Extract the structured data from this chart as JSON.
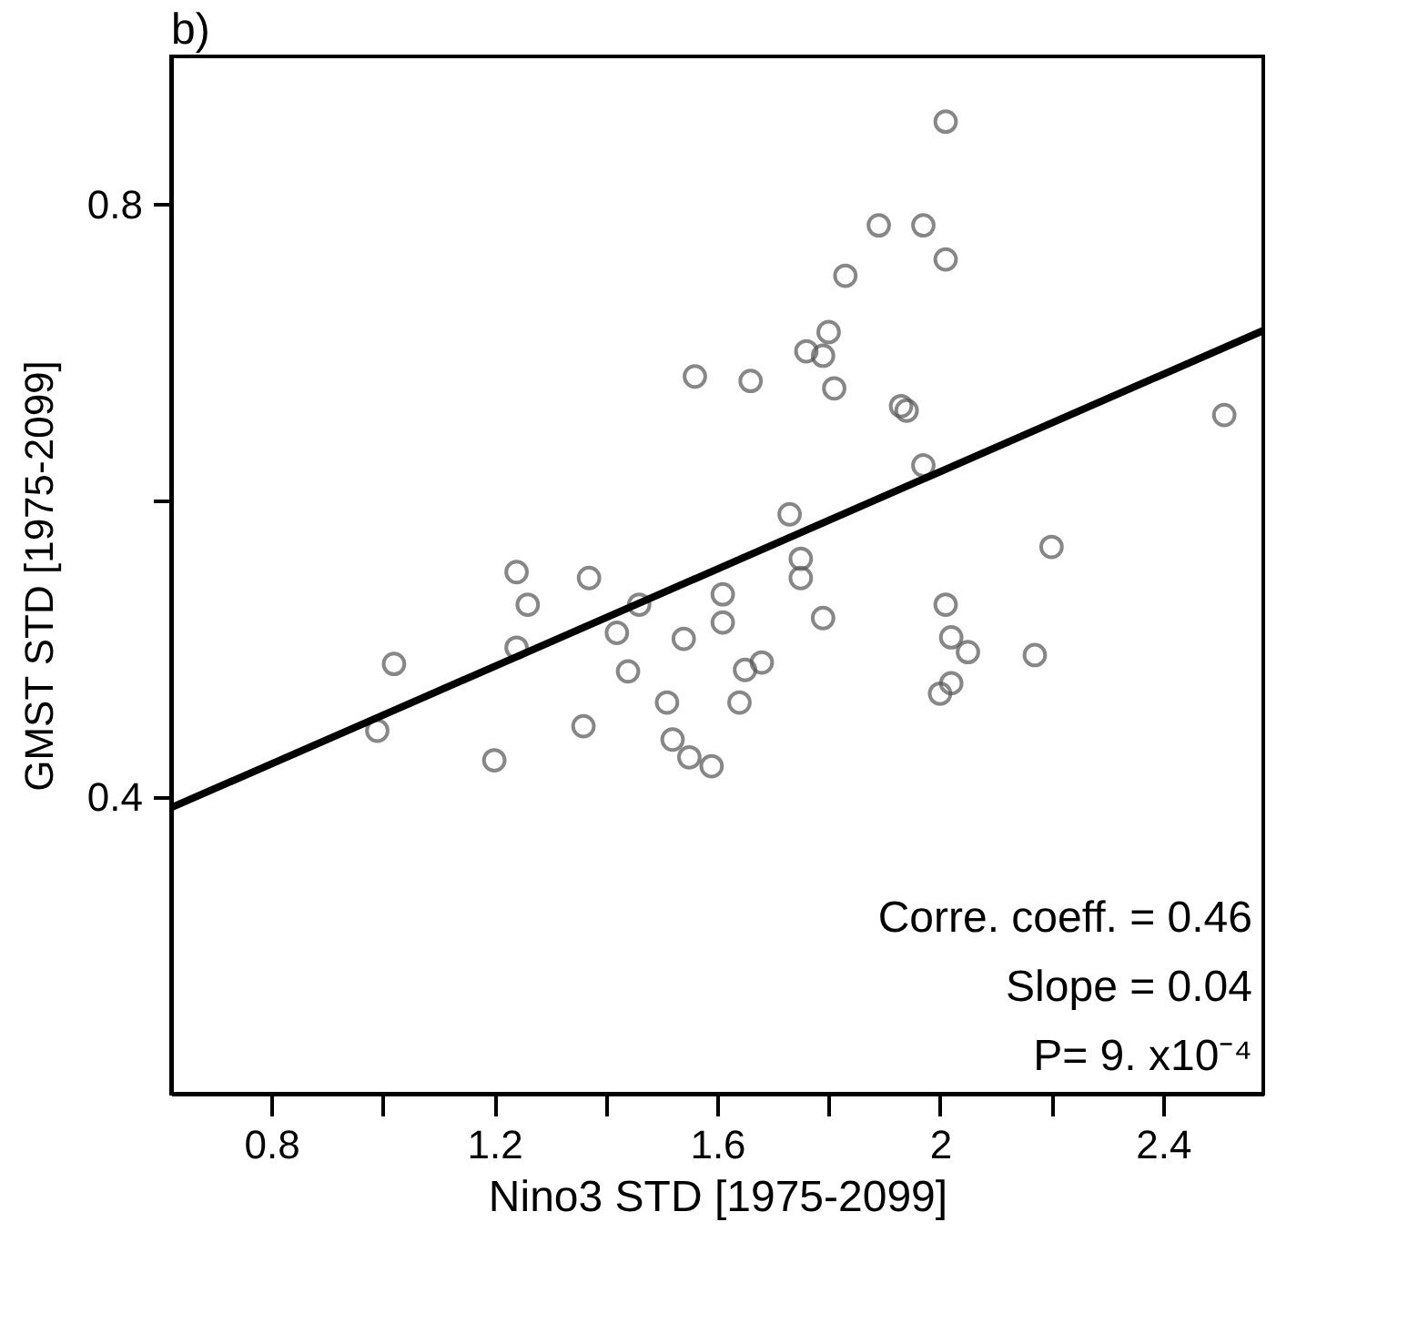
{
  "chart_data": {
    "type": "scatter",
    "title": "b)",
    "xlabel": "Nino3 STD [1975-2099]",
    "ylabel": "GMST STD [1975-2099]",
    "annotations": [
      "Corre. coeff. =  0.46",
      "Slope =  0.04",
      "P= 9. x10⁻⁴"
    ],
    "xlim": [
      0.62,
      2.58
    ],
    "ylim": [
      0.2,
      0.9
    ],
    "xticks": [
      0.8,
      {
        "value": 1.0,
        "label": null
      },
      1.2,
      {
        "value": 1.4,
        "label": null
      },
      1.6,
      {
        "value": 1.8,
        "label": null
      },
      2,
      {
        "value": 2.2,
        "label": null
      },
      2.4
    ],
    "yticks": [
      0.4,
      {
        "value": 0.6,
        "label": null
      },
      0.8
    ],
    "series": [
      {
        "marker": "circle",
        "color": "#555555",
        "x": [
          2.01,
          1.89,
          1.97,
          2.01,
          1.83,
          1.8,
          1.76,
          1.79,
          1.66,
          1.56,
          1.81,
          1.93,
          1.94,
          2.51,
          1.97,
          1.73,
          1.75,
          1.75,
          2.2,
          1.24,
          1.37,
          1.26,
          1.46,
          1.42,
          1.54,
          1.61,
          1.61,
          1.02,
          1.24,
          1.44,
          1.51,
          0.99,
          1.36,
          1.52,
          1.55,
          1.59,
          1.2,
          1.79,
          1.65,
          1.68,
          1.64,
          2.01,
          2.02,
          2.05,
          2.17,
          2.02,
          2.0
        ],
        "values": [
          0.856,
          0.786,
          0.786,
          0.763,
          0.752,
          0.714,
          0.701,
          0.698,
          0.681,
          0.684,
          0.676,
          0.664,
          0.661,
          0.658,
          0.624,
          0.591,
          0.561,
          0.548,
          0.569,
          0.552,
          0.548,
          0.53,
          0.53,
          0.511,
          0.507,
          0.537,
          0.518,
          0.49,
          0.501,
          0.485,
          0.464,
          0.445,
          0.448,
          0.439,
          0.427,
          0.421,
          0.425,
          0.521,
          0.486,
          0.491,
          0.464,
          0.53,
          0.508,
          0.498,
          0.496,
          0.477,
          0.47
        ]
      },
      {
        "type": "line",
        "color": "#000000",
        "x": [
          0.62,
          2.58
        ],
        "values": [
          0.393,
          0.715
        ]
      }
    ]
  }
}
